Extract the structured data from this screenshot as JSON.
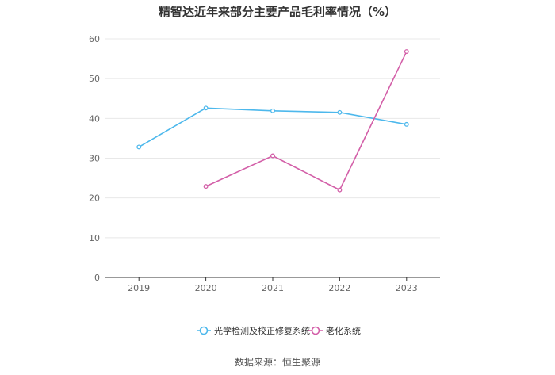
{
  "title": "精智达近年来部分主要产品毛利率情况（%）",
  "source": "数据来源：恒生聚源",
  "colors": {
    "series_1": "#4db8ec",
    "series_2": "#d35fa8",
    "grid": "#e8e8e8",
    "axis": "#333333"
  },
  "chart_data": {
    "type": "line",
    "title": "精智达近年来部分主要产品毛利率情况（%）",
    "xlabel": "",
    "ylabel": "",
    "categories": [
      "2019",
      "2020",
      "2021",
      "2022",
      "2023"
    ],
    "ylim": [
      0,
      60
    ],
    "yticks": [
      0,
      10,
      20,
      30,
      40,
      50,
      60
    ],
    "grid": true,
    "legend_position": "bottom",
    "series": [
      {
        "name": "光学检测及校正修复系统",
        "values": [
          32.8,
          42.6,
          41.9,
          41.5,
          38.5
        ]
      },
      {
        "name": "老化系统",
        "values": [
          null,
          22.9,
          30.6,
          22.0,
          56.8
        ]
      }
    ]
  }
}
